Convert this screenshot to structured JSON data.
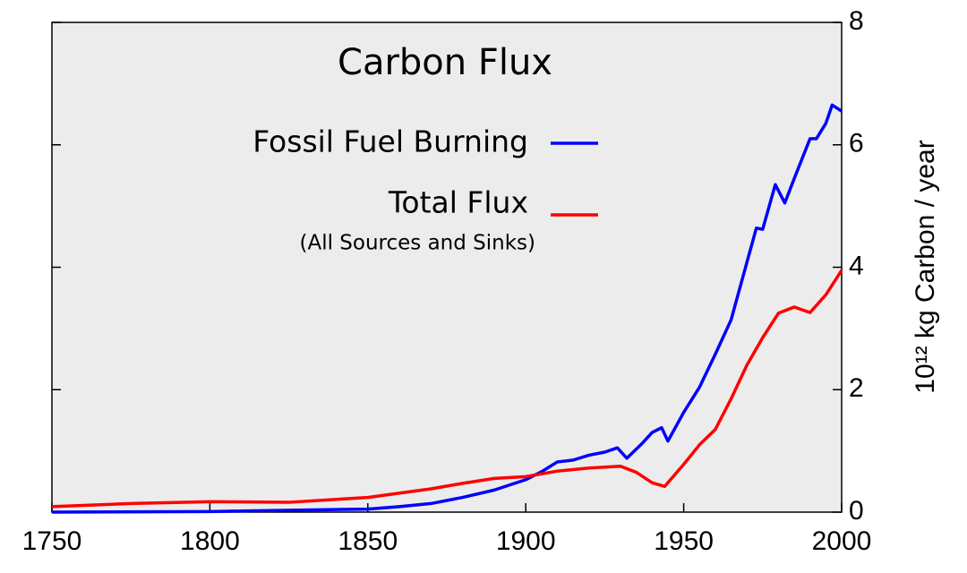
{
  "chart_data": {
    "type": "line",
    "title": "Carbon Flux",
    "y_label": "10¹² kg Carbon / year",
    "legend_note": "(All Sources and Sinks)",
    "xlim": [
      1750,
      2000
    ],
    "xticks": [
      1750,
      1800,
      1850,
      1900,
      1950,
      2000
    ],
    "ylim": [
      0,
      8
    ],
    "yticks": [
      0,
      2,
      4,
      6,
      8
    ],
    "background": "#ececec",
    "series": [
      {
        "name": "Fossil Fuel Burning",
        "color": "#0000ff",
        "x": [
          1750,
          1800,
          1850,
          1860,
          1870,
          1880,
          1890,
          1900,
          1905,
          1910,
          1915,
          1920,
          1925,
          1929,
          1932,
          1937,
          1940,
          1943,
          1945,
          1950,
          1955,
          1960,
          1965,
          1970,
          1973,
          1975,
          1979,
          1982,
          1985,
          1990,
          1992,
          1995,
          1997,
          2000
        ],
        "values": [
          0,
          0.01,
          0.05,
          0.09,
          0.14,
          0.24,
          0.36,
          0.53,
          0.66,
          0.82,
          0.85,
          0.93,
          0.98,
          1.05,
          0.88,
          1.13,
          1.3,
          1.38,
          1.16,
          1.63,
          2.04,
          2.58,
          3.14,
          4.08,
          4.64,
          4.62,
          5.35,
          5.05,
          5.45,
          6.1,
          6.1,
          6.35,
          6.65,
          6.55
        ]
      },
      {
        "name": "Total Flux",
        "color": "#ff0000",
        "x": [
          1750,
          1775,
          1800,
          1825,
          1850,
          1870,
          1880,
          1890,
          1900,
          1910,
          1920,
          1930,
          1935,
          1940,
          1944,
          1950,
          1955,
          1960,
          1965,
          1970,
          1975,
          1980,
          1985,
          1990,
          1995,
          2000
        ],
        "values": [
          0.09,
          0.14,
          0.17,
          0.16,
          0.24,
          0.38,
          0.47,
          0.55,
          0.58,
          0.67,
          0.72,
          0.75,
          0.65,
          0.48,
          0.42,
          0.78,
          1.1,
          1.35,
          1.85,
          2.4,
          2.85,
          3.25,
          3.35,
          3.26,
          3.55,
          3.95
        ]
      }
    ]
  }
}
